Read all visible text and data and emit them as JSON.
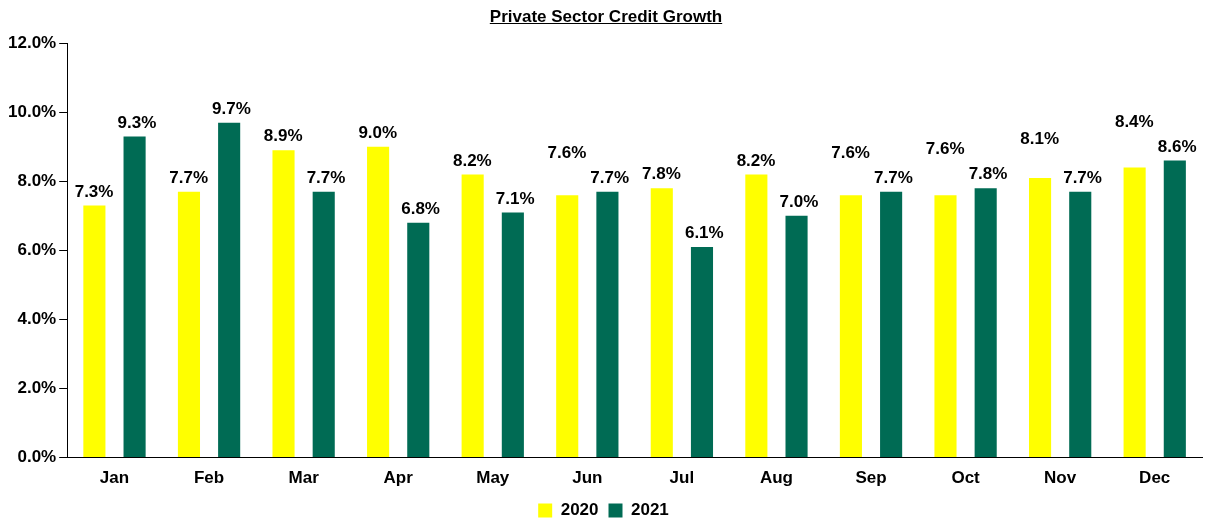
{
  "chart_data": {
    "type": "bar",
    "title": "Private Sector Credit Growth",
    "categories": [
      "Jan",
      "Feb",
      "Mar",
      "Apr",
      "May",
      "Jun",
      "Jul",
      "Aug",
      "Sep",
      "Oct",
      "Nov",
      "Dec"
    ],
    "series": [
      {
        "name": "2020",
        "color": "#ffff00",
        "values": [
          7.3,
          7.7,
          8.9,
          9.0,
          8.2,
          7.6,
          7.8,
          8.2,
          7.6,
          7.6,
          8.1,
          8.4
        ],
        "value_labels": [
          "7.3%",
          "7.7%",
          "8.9%",
          "9.0%",
          "8.2%",
          "7.6%",
          "7.8%",
          "8.2%",
          "7.6%",
          "7.6%",
          "8.1%",
          "8.4%"
        ]
      },
      {
        "name": "2021",
        "color": "#006b54",
        "values": [
          9.3,
          9.7,
          7.7,
          6.8,
          7.1,
          7.7,
          6.1,
          7.0,
          7.7,
          7.8,
          7.7,
          8.6
        ],
        "value_labels": [
          "9.3%",
          "9.7%",
          "7.7%",
          "6.8%",
          "7.1%",
          "7.7%",
          "6.1%",
          "7.0%",
          "7.7%",
          "7.8%",
          "7.7%",
          "8.6%"
        ]
      }
    ],
    "ylim": [
      0,
      12
    ],
    "yticks": [
      {
        "value": 0,
        "label": "0.0%"
      },
      {
        "value": 2,
        "label": "2.0%"
      },
      {
        "value": 4,
        "label": "4.0%"
      },
      {
        "value": 6,
        "label": "6.0%"
      },
      {
        "value": 8,
        "label": "8.0%"
      },
      {
        "value": 10,
        "label": "10.0%"
      },
      {
        "value": 12,
        "label": "12.0%"
      }
    ],
    "grid": false,
    "legend": "bottom"
  }
}
